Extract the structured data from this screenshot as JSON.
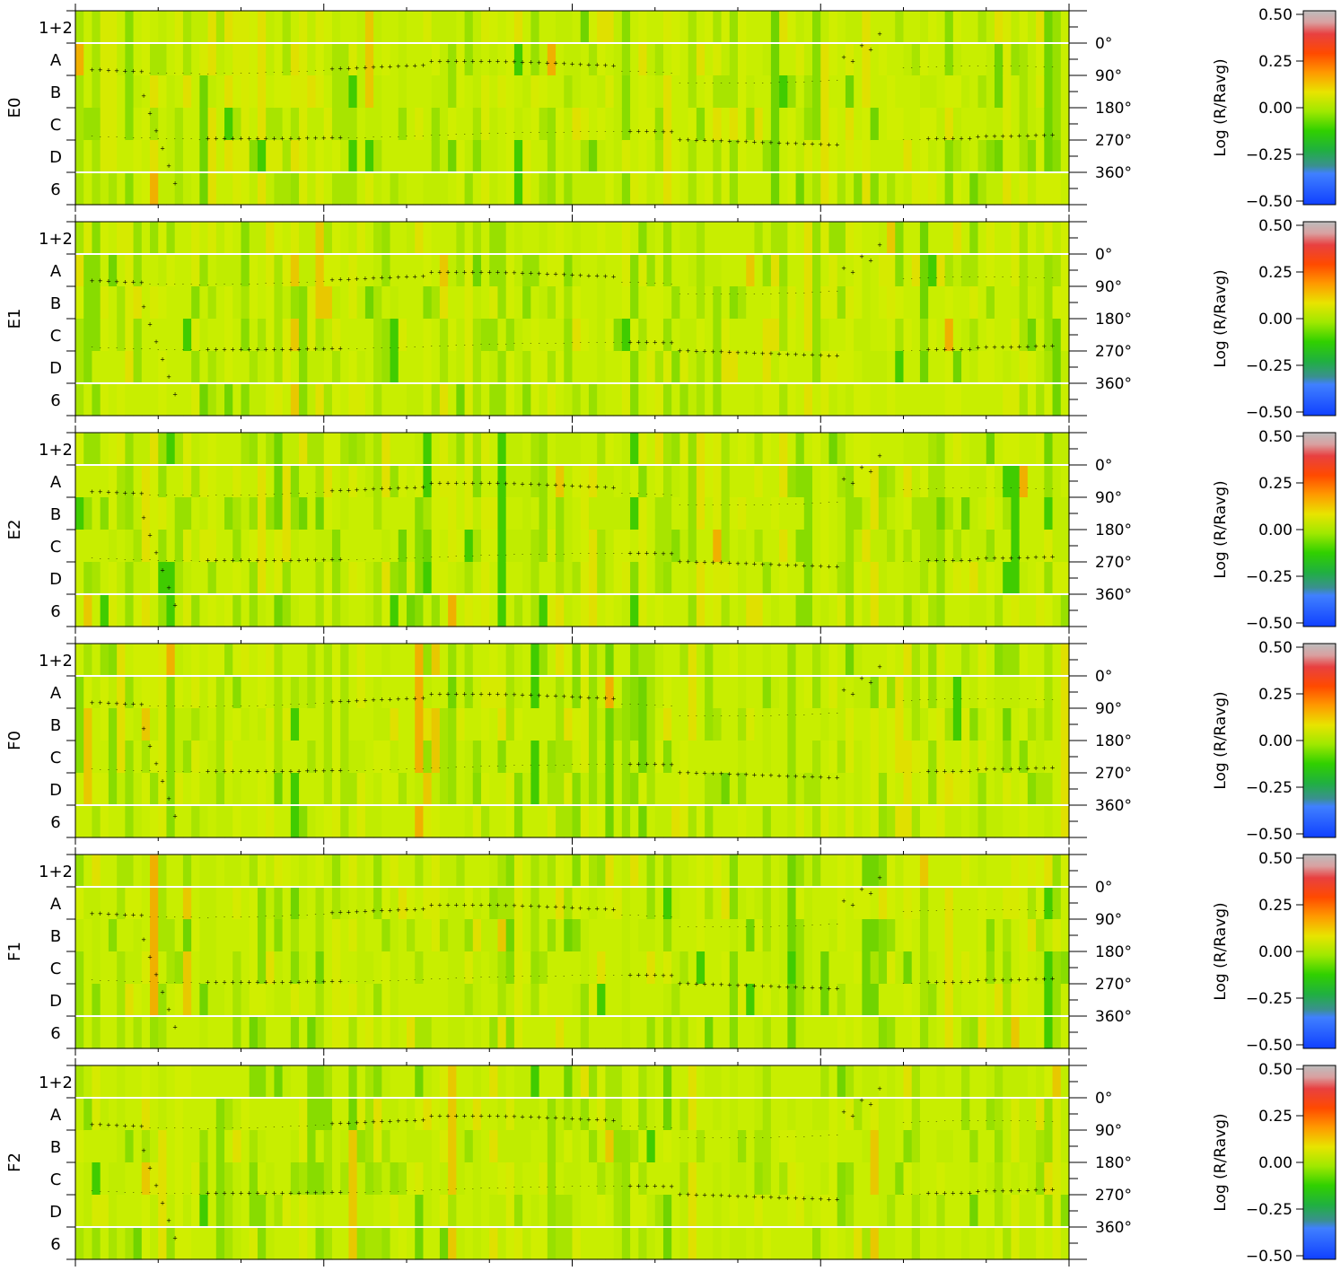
{
  "chart_data": {
    "type": "heatmap",
    "panels": [
      {
        "label": "E0",
        "max_ring": "E0"
      },
      {
        "label": "E1"
      },
      {
        "label": "E2"
      },
      {
        "label": "F0"
      },
      {
        "label": "F1"
      },
      {
        "label": "F2"
      }
    ],
    "ring_labels": [
      "1+2",
      "A",
      "B",
      "C",
      "D",
      "6"
    ],
    "right_ticks": [
      "0°",
      "90°",
      "180°",
      "270°",
      "360°"
    ],
    "right_tick_values": [
      0,
      90,
      180,
      270,
      360
    ],
    "colorbar": {
      "label": "Log (R/Ravg)",
      "ticks": [
        "0.50",
        "0.25",
        "0.00",
        "−0.25",
        "−0.50"
      ],
      "range": [
        -0.5,
        0.5
      ]
    },
    "n_columns": 120,
    "colors": {
      "background": "#ffffff",
      "neutral": "#c8ee00",
      "separator": "#ffffff",
      "points": "#ffffff"
    }
  }
}
